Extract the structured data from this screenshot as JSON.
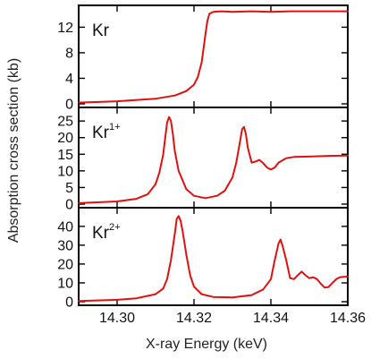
{
  "chart_data": {
    "type": "line",
    "xlabel": "X-ray Energy (keV)",
    "ylabel": "Absorption cross section (kb)",
    "xlim": [
      14.29,
      14.36
    ],
    "x_ticks": [
      14.3,
      14.32,
      14.34,
      14.36
    ],
    "x_tick_labels": [
      "14.30",
      "14.32",
      "14.34",
      "14.36"
    ],
    "line_color": "#e01010",
    "panels": [
      {
        "label": "Kr",
        "superscript": "",
        "ylim": [
          0,
          15
        ],
        "y_ticks": [
          0,
          4,
          8,
          12
        ],
        "series": [
          {
            "x": [
              14.29,
              14.3,
              14.31,
              14.315,
              14.318,
              14.32,
              14.321,
              14.322,
              14.3225,
              14.323,
              14.3235,
              14.324,
              14.325,
              14.327,
              14.33,
              14.335,
              14.34,
              14.345,
              14.35,
              14.355,
              14.36
            ],
            "y": [
              0.2,
              0.4,
              0.8,
              1.3,
              2.0,
              3.0,
              4.2,
              6.5,
              8.8,
              11.0,
              13.0,
              14.1,
              14.4,
              14.5,
              14.4,
              14.5,
              14.4,
              14.5,
              14.5,
              14.5,
              14.5
            ]
          }
        ]
      },
      {
        "label": "Kr",
        "superscript": "1+",
        "ylim": [
          0,
          28
        ],
        "y_ticks": [
          0,
          5,
          10,
          15,
          20,
          25
        ],
        "series": [
          {
            "x": [
              14.29,
              14.3,
              14.305,
              14.308,
              14.31,
              14.311,
              14.312,
              14.3125,
              14.313,
              14.3135,
              14.314,
              14.3145,
              14.315,
              14.316,
              14.318,
              14.32,
              14.323,
              14.326,
              14.328,
              14.33,
              14.331,
              14.332,
              14.3325,
              14.333,
              14.3335,
              14.334,
              14.335,
              14.336,
              14.337,
              14.338,
              14.339,
              14.34,
              14.341,
              14.342,
              14.344,
              14.346,
              14.35,
              14.355,
              14.36
            ],
            "y": [
              0.3,
              0.8,
              1.6,
              3.0,
              6.0,
              9.5,
              15.0,
              20.0,
              24.5,
              26.2,
              25.0,
              21.0,
              16.0,
              10.0,
              4.5,
              2.5,
              1.8,
              2.5,
              4.0,
              8.0,
              12.5,
              19.0,
              22.5,
              23.2,
              21.0,
              17.0,
              12.5,
              12.8,
              13.3,
              12.3,
              11.0,
              10.4,
              11.0,
              12.5,
              13.8,
              14.2,
              14.3,
              14.5,
              14.6
            ]
          }
        ]
      },
      {
        "label": "Kr",
        "superscript": "2+",
        "ylim": [
          0,
          48
        ],
        "y_ticks": [
          0,
          10,
          20,
          30,
          40
        ],
        "series": [
          {
            "x": [
              14.29,
              14.3,
              14.305,
              14.31,
              14.312,
              14.313,
              14.314,
              14.315,
              14.3155,
              14.316,
              14.3165,
              14.317,
              14.318,
              14.319,
              14.32,
              14.322,
              14.325,
              14.33,
              14.335,
              14.338,
              14.34,
              14.341,
              14.342,
              14.3425,
              14.343,
              14.344,
              14.345,
              14.346,
              14.347,
              14.348,
              14.349,
              14.35,
              14.351,
              14.352,
              14.353,
              14.354,
              14.355,
              14.356,
              14.357,
              14.358,
              14.36
            ],
            "y": [
              0.4,
              1.0,
              1.8,
              4.0,
              7.0,
              12.0,
              22.0,
              36.0,
              44.0,
              45.5,
              43.0,
              38.0,
              25.0,
              14.0,
              8.0,
              4.0,
              2.5,
              2.3,
              3.5,
              6.5,
              12.0,
              22.0,
              31.0,
              33.0,
              30.0,
              22.0,
              12.5,
              12.0,
              14.0,
              16.0,
              14.0,
              12.5,
              13.0,
              12.0,
              9.5,
              7.5,
              7.8,
              10.0,
              12.0,
              13.0,
              13.3
            ]
          }
        ]
      }
    ]
  }
}
